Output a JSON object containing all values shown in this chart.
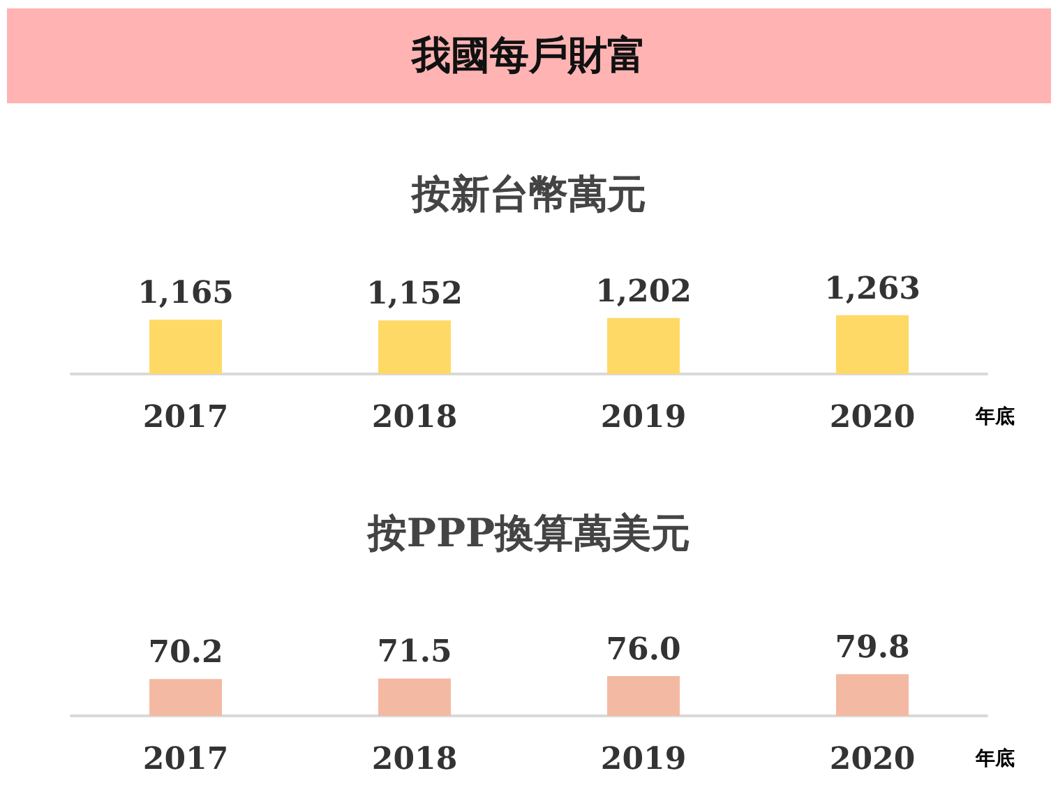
{
  "chart_data": [
    {
      "type": "bar",
      "title": "我國每戶財富",
      "subtitle": "按新台幣萬元",
      "xlabel": "年底",
      "categories": [
        "2017",
        "2018",
        "2019",
        "2020"
      ],
      "values": [
        1165,
        1152,
        1202,
        1263
      ],
      "value_labels": [
        "1,165",
        "1,152",
        "1,202",
        "1,263"
      ],
      "color": "#ffd966"
    },
    {
      "type": "bar",
      "title": "按PPP換算萬美元",
      "xlabel": "年底",
      "categories": [
        "2017",
        "2018",
        "2019",
        "2020"
      ],
      "values": [
        70.2,
        71.5,
        76.0,
        79.8
      ],
      "value_labels": [
        "70.2",
        "71.5",
        "76.0",
        "79.8"
      ],
      "color": "#f4b9a2"
    }
  ]
}
